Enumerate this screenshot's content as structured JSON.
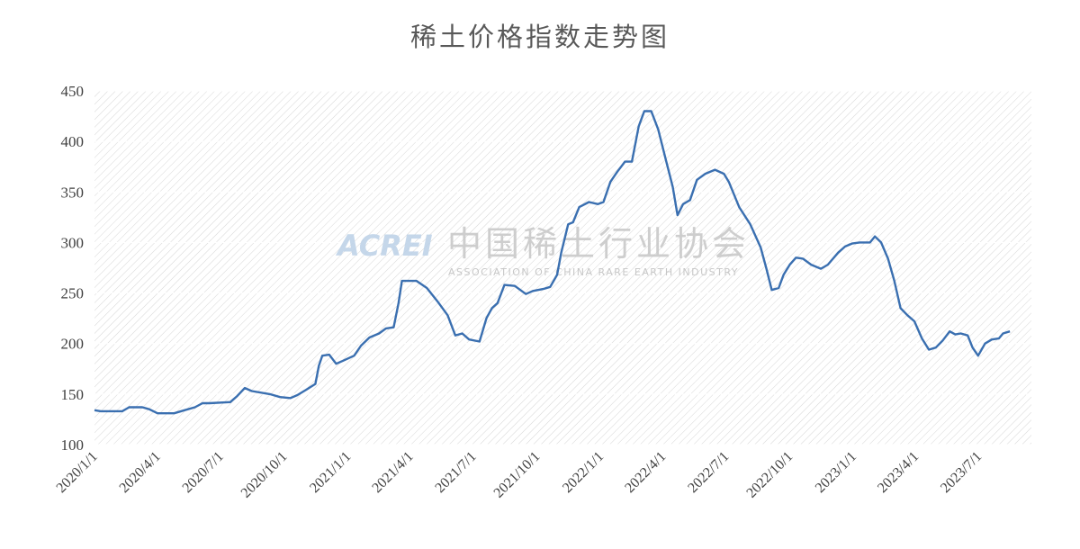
{
  "chart_data": {
    "type": "line",
    "title": "稀土价格指数走势图",
    "xlabel": "",
    "ylabel": "",
    "ylim": [
      100,
      450
    ],
    "y_ticks": [
      100,
      150,
      200,
      250,
      300,
      350,
      400,
      450
    ],
    "x_range": [
      "2020-01-01",
      "2023-09-15"
    ],
    "x_tick_labels": [
      "2020/1/1",
      "2020/4/1",
      "2020/7/1",
      "2020/10/1",
      "2021/1/1",
      "2021/4/1",
      "2021/7/1",
      "2021/10/1",
      "2022/1/1",
      "2022/4/1",
      "2022/7/1",
      "2022/10/1",
      "2023/1/1",
      "2023/4/1",
      "2023/7/1"
    ],
    "x_tick_dates": [
      "2020-01-01",
      "2020-04-01",
      "2020-07-01",
      "2020-10-01",
      "2021-01-01",
      "2021-04-01",
      "2021-07-01",
      "2021-10-01",
      "2022-01-01",
      "2022-04-01",
      "2022-07-01",
      "2022-10-01",
      "2023-01-01",
      "2023-04-01",
      "2023-07-01"
    ],
    "grid": true,
    "legend": "none",
    "series": [
      {
        "color": "#3a6fb0",
        "points": [
          [
            "2020-01-01",
            134
          ],
          [
            "2020-01-10",
            133
          ],
          [
            "2020-02-10",
            133
          ],
          [
            "2020-02-20",
            137
          ],
          [
            "2020-03-10",
            137
          ],
          [
            "2020-03-20",
            135
          ],
          [
            "2020-04-01",
            131
          ],
          [
            "2020-04-25",
            131
          ],
          [
            "2020-05-10",
            134
          ],
          [
            "2020-05-25",
            137
          ],
          [
            "2020-06-05",
            141
          ],
          [
            "2020-06-15",
            141
          ],
          [
            "2020-07-15",
            142
          ],
          [
            "2020-07-25",
            148
          ],
          [
            "2020-08-05",
            156
          ],
          [
            "2020-08-15",
            153
          ],
          [
            "2020-09-10",
            150
          ],
          [
            "2020-09-25",
            147
          ],
          [
            "2020-10-10",
            146
          ],
          [
            "2020-10-20",
            149
          ],
          [
            "2020-11-01",
            154
          ],
          [
            "2020-11-15",
            160
          ],
          [
            "2020-11-20",
            178
          ],
          [
            "2020-11-25",
            188
          ],
          [
            "2020-12-05",
            189
          ],
          [
            "2020-12-15",
            180
          ],
          [
            "2020-12-25",
            183
          ],
          [
            "2021-01-10",
            188
          ],
          [
            "2021-01-20",
            198
          ],
          [
            "2021-02-01",
            206
          ],
          [
            "2021-02-15",
            210
          ],
          [
            "2021-02-25",
            215
          ],
          [
            "2021-03-08",
            216
          ],
          [
            "2021-03-15",
            240
          ],
          [
            "2021-03-20",
            262
          ],
          [
            "2021-03-28",
            262
          ],
          [
            "2021-04-10",
            262
          ],
          [
            "2021-04-25",
            255
          ],
          [
            "2021-05-10",
            242
          ],
          [
            "2021-05-25",
            228
          ],
          [
            "2021-06-05",
            208
          ],
          [
            "2021-06-15",
            210
          ],
          [
            "2021-06-25",
            204
          ],
          [
            "2021-07-10",
            202
          ],
          [
            "2021-07-20",
            225
          ],
          [
            "2021-07-28",
            235
          ],
          [
            "2021-08-05",
            240
          ],
          [
            "2021-08-15",
            258
          ],
          [
            "2021-08-30",
            257
          ],
          [
            "2021-09-15",
            249
          ],
          [
            "2021-09-25",
            252
          ],
          [
            "2021-10-10",
            254
          ],
          [
            "2021-10-20",
            256
          ],
          [
            "2021-10-30",
            268
          ],
          [
            "2021-11-05",
            290
          ],
          [
            "2021-11-15",
            318
          ],
          [
            "2021-11-22",
            320
          ],
          [
            "2021-12-01",
            335
          ],
          [
            "2021-12-15",
            340
          ],
          [
            "2021-12-28",
            338
          ],
          [
            "2022-01-05",
            340
          ],
          [
            "2022-01-15",
            360
          ],
          [
            "2022-01-25",
            370
          ],
          [
            "2022-02-05",
            380
          ],
          [
            "2022-02-15",
            380
          ],
          [
            "2022-02-25",
            415
          ],
          [
            "2022-03-05",
            430
          ],
          [
            "2022-03-15",
            430
          ],
          [
            "2022-03-25",
            412
          ],
          [
            "2022-04-05",
            382
          ],
          [
            "2022-04-15",
            355
          ],
          [
            "2022-04-22",
            327
          ],
          [
            "2022-04-30",
            338
          ],
          [
            "2022-05-10",
            342
          ],
          [
            "2022-05-20",
            362
          ],
          [
            "2022-06-01",
            368
          ],
          [
            "2022-06-15",
            372
          ],
          [
            "2022-06-28",
            368
          ],
          [
            "2022-07-05",
            360
          ],
          [
            "2022-07-20",
            335
          ],
          [
            "2022-08-05",
            318
          ],
          [
            "2022-08-20",
            295
          ],
          [
            "2022-08-28",
            275
          ],
          [
            "2022-09-05",
            253
          ],
          [
            "2022-09-15",
            255
          ],
          [
            "2022-09-22",
            268
          ],
          [
            "2022-10-01",
            278
          ],
          [
            "2022-10-10",
            285
          ],
          [
            "2022-10-20",
            284
          ],
          [
            "2022-11-01",
            278
          ],
          [
            "2022-11-15",
            274
          ],
          [
            "2022-11-25",
            278
          ],
          [
            "2022-12-10",
            290
          ],
          [
            "2022-12-20",
            296
          ],
          [
            "2022-12-30",
            299
          ],
          [
            "2023-01-10",
            300
          ],
          [
            "2023-01-25",
            300
          ],
          [
            "2023-02-01",
            306
          ],
          [
            "2023-02-10",
            300
          ],
          [
            "2023-02-20",
            284
          ],
          [
            "2023-03-01",
            262
          ],
          [
            "2023-03-10",
            235
          ],
          [
            "2023-03-20",
            228
          ],
          [
            "2023-03-30",
            222
          ],
          [
            "2023-04-10",
            205
          ],
          [
            "2023-04-20",
            194
          ],
          [
            "2023-04-30",
            196
          ],
          [
            "2023-05-10",
            203
          ],
          [
            "2023-05-20",
            212
          ],
          [
            "2023-05-28",
            209
          ],
          [
            "2023-06-05",
            210
          ],
          [
            "2023-06-15",
            208
          ],
          [
            "2023-06-22",
            196
          ],
          [
            "2023-06-30",
            188
          ],
          [
            "2023-07-10",
            200
          ],
          [
            "2023-07-20",
            204
          ],
          [
            "2023-07-30",
            205
          ],
          [
            "2023-08-05",
            210
          ],
          [
            "2023-08-15",
            212
          ]
        ]
      }
    ],
    "watermark": {
      "logo": "ACREI",
      "chinese": "中国稀土行业协会",
      "english": "ASSOCIATION OF CHINA RARE EARTH INDUSTRY"
    }
  }
}
